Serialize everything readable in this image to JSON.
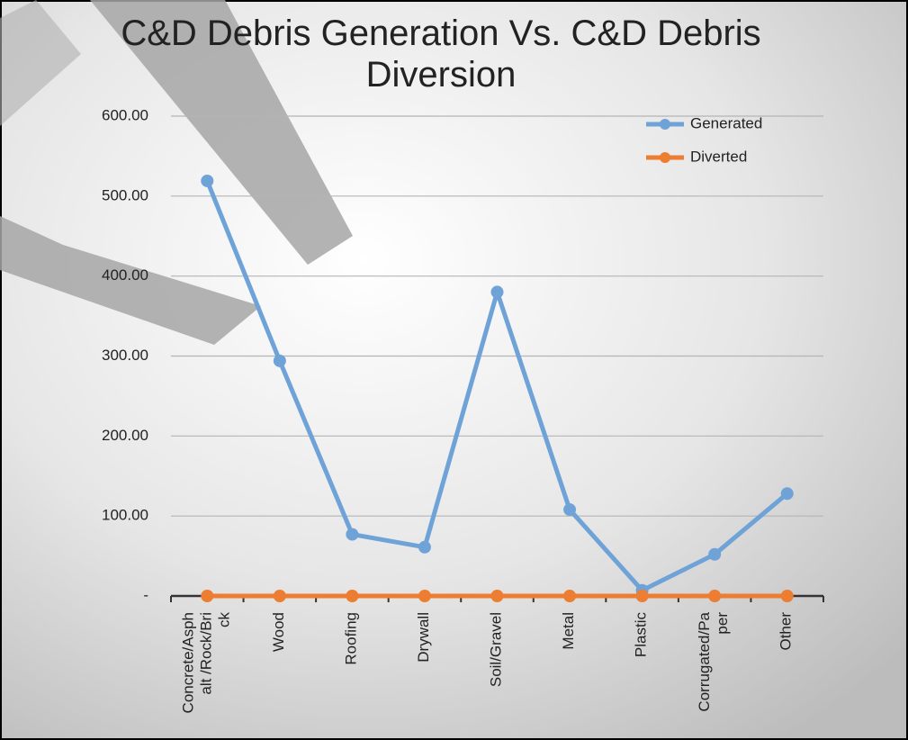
{
  "chart_data": {
    "type": "line",
    "title": "C&D Debris Generation Vs. C&D Debris Diversion",
    "categories": [
      "Concrete/Asphalt /Rock/Brick",
      "Wood",
      "Roofing",
      "Drywall",
      "Soil/Gravel",
      "Metal",
      "Plastic",
      "Corrugated/Paper",
      "Other"
    ],
    "series": [
      {
        "name": "Generated",
        "color": "#6fa3d8",
        "values": [
          519,
          294,
          77,
          61,
          380,
          108,
          7,
          52,
          128
        ]
      },
      {
        "name": "Diverted",
        "color": "#ed7d31",
        "values": [
          0,
          0,
          0,
          0,
          0,
          0,
          0,
          0,
          0
        ]
      }
    ],
    "ylim": [
      0,
      600
    ],
    "yticks": [
      {
        "value": 0,
        "label": "-"
      },
      {
        "value": 100,
        "label": "100.00"
      },
      {
        "value": 200,
        "label": "200.00"
      },
      {
        "value": 300,
        "label": "300.00"
      },
      {
        "value": 400,
        "label": "400.00"
      },
      {
        "value": 500,
        "label": "500.00"
      },
      {
        "value": 600,
        "label": "600.00"
      }
    ],
    "grid": true,
    "legend": "upper right"
  }
}
